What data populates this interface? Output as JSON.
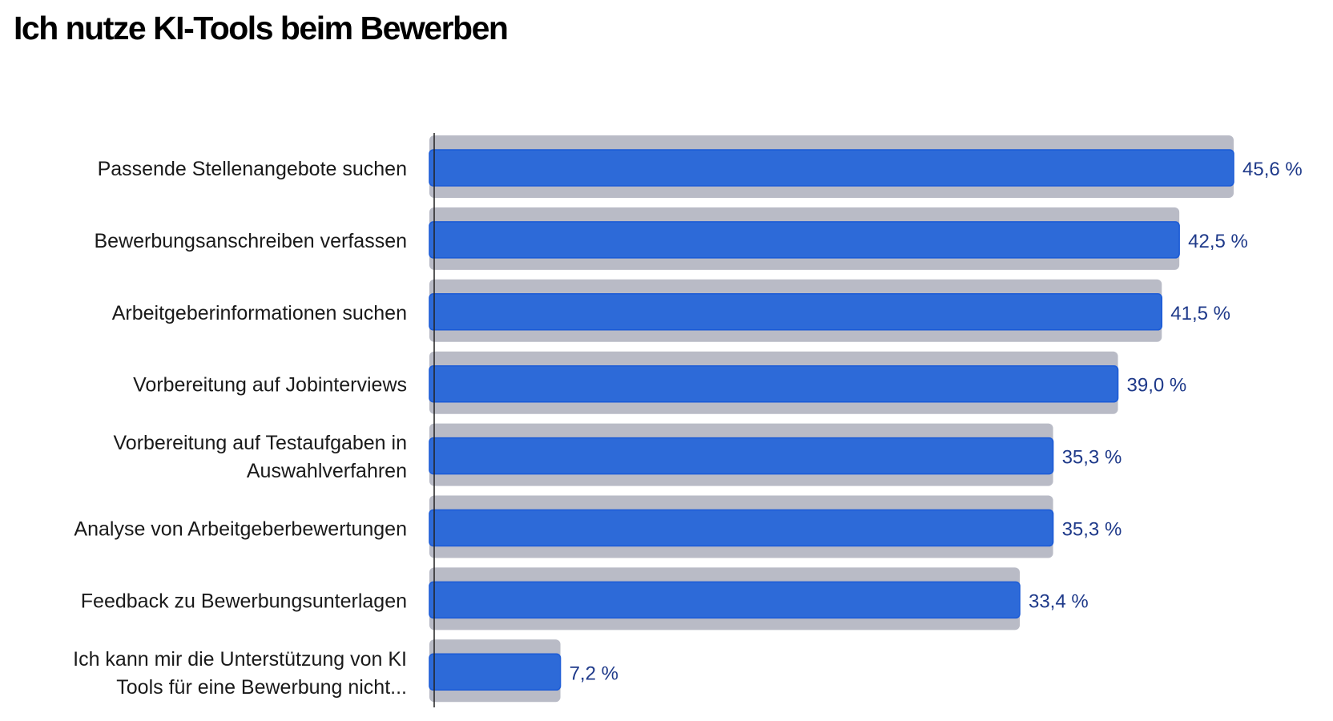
{
  "chart_data": {
    "type": "bar",
    "orientation": "horizontal",
    "title": "Ich nutze KI-Tools beim Bewerben",
    "categories": [
      [
        "Passende Stellenangebote suchen"
      ],
      [
        "Bewerbungsanschreiben verfassen"
      ],
      [
        "Arbeitgeberinformationen suchen"
      ],
      [
        "Vorbereitung auf Jobinterviews"
      ],
      [
        "Vorbereitung auf Testaufgaben in",
        "Auswahlverfahren"
      ],
      [
        "Analyse von Arbeitgeberbewertungen"
      ],
      [
        "Feedback zu Bewerbungsunterlagen"
      ],
      [
        "Ich kann mir die Unterstützung von KI",
        "Tools für eine Bewerbung nicht..."
      ]
    ],
    "values": [
      45.6,
      42.5,
      41.5,
      39.0,
      35.3,
      35.3,
      33.4,
      7.2
    ],
    "value_labels": [
      "45,6 %",
      "42,5 %",
      "41,5 %",
      "39,0 %",
      "35,3 %",
      "35,3 %",
      "33,4 %",
      "7,2 %"
    ],
    "xlabel": "",
    "ylabel": "",
    "xlim": [
      0,
      45.6
    ],
    "grid": false,
    "colors": {
      "bar": "#2d6ad8",
      "bar_border": "#1a5ad6",
      "bar_background": "#b9bbc6",
      "value_text": "#1f3a8a"
    }
  }
}
